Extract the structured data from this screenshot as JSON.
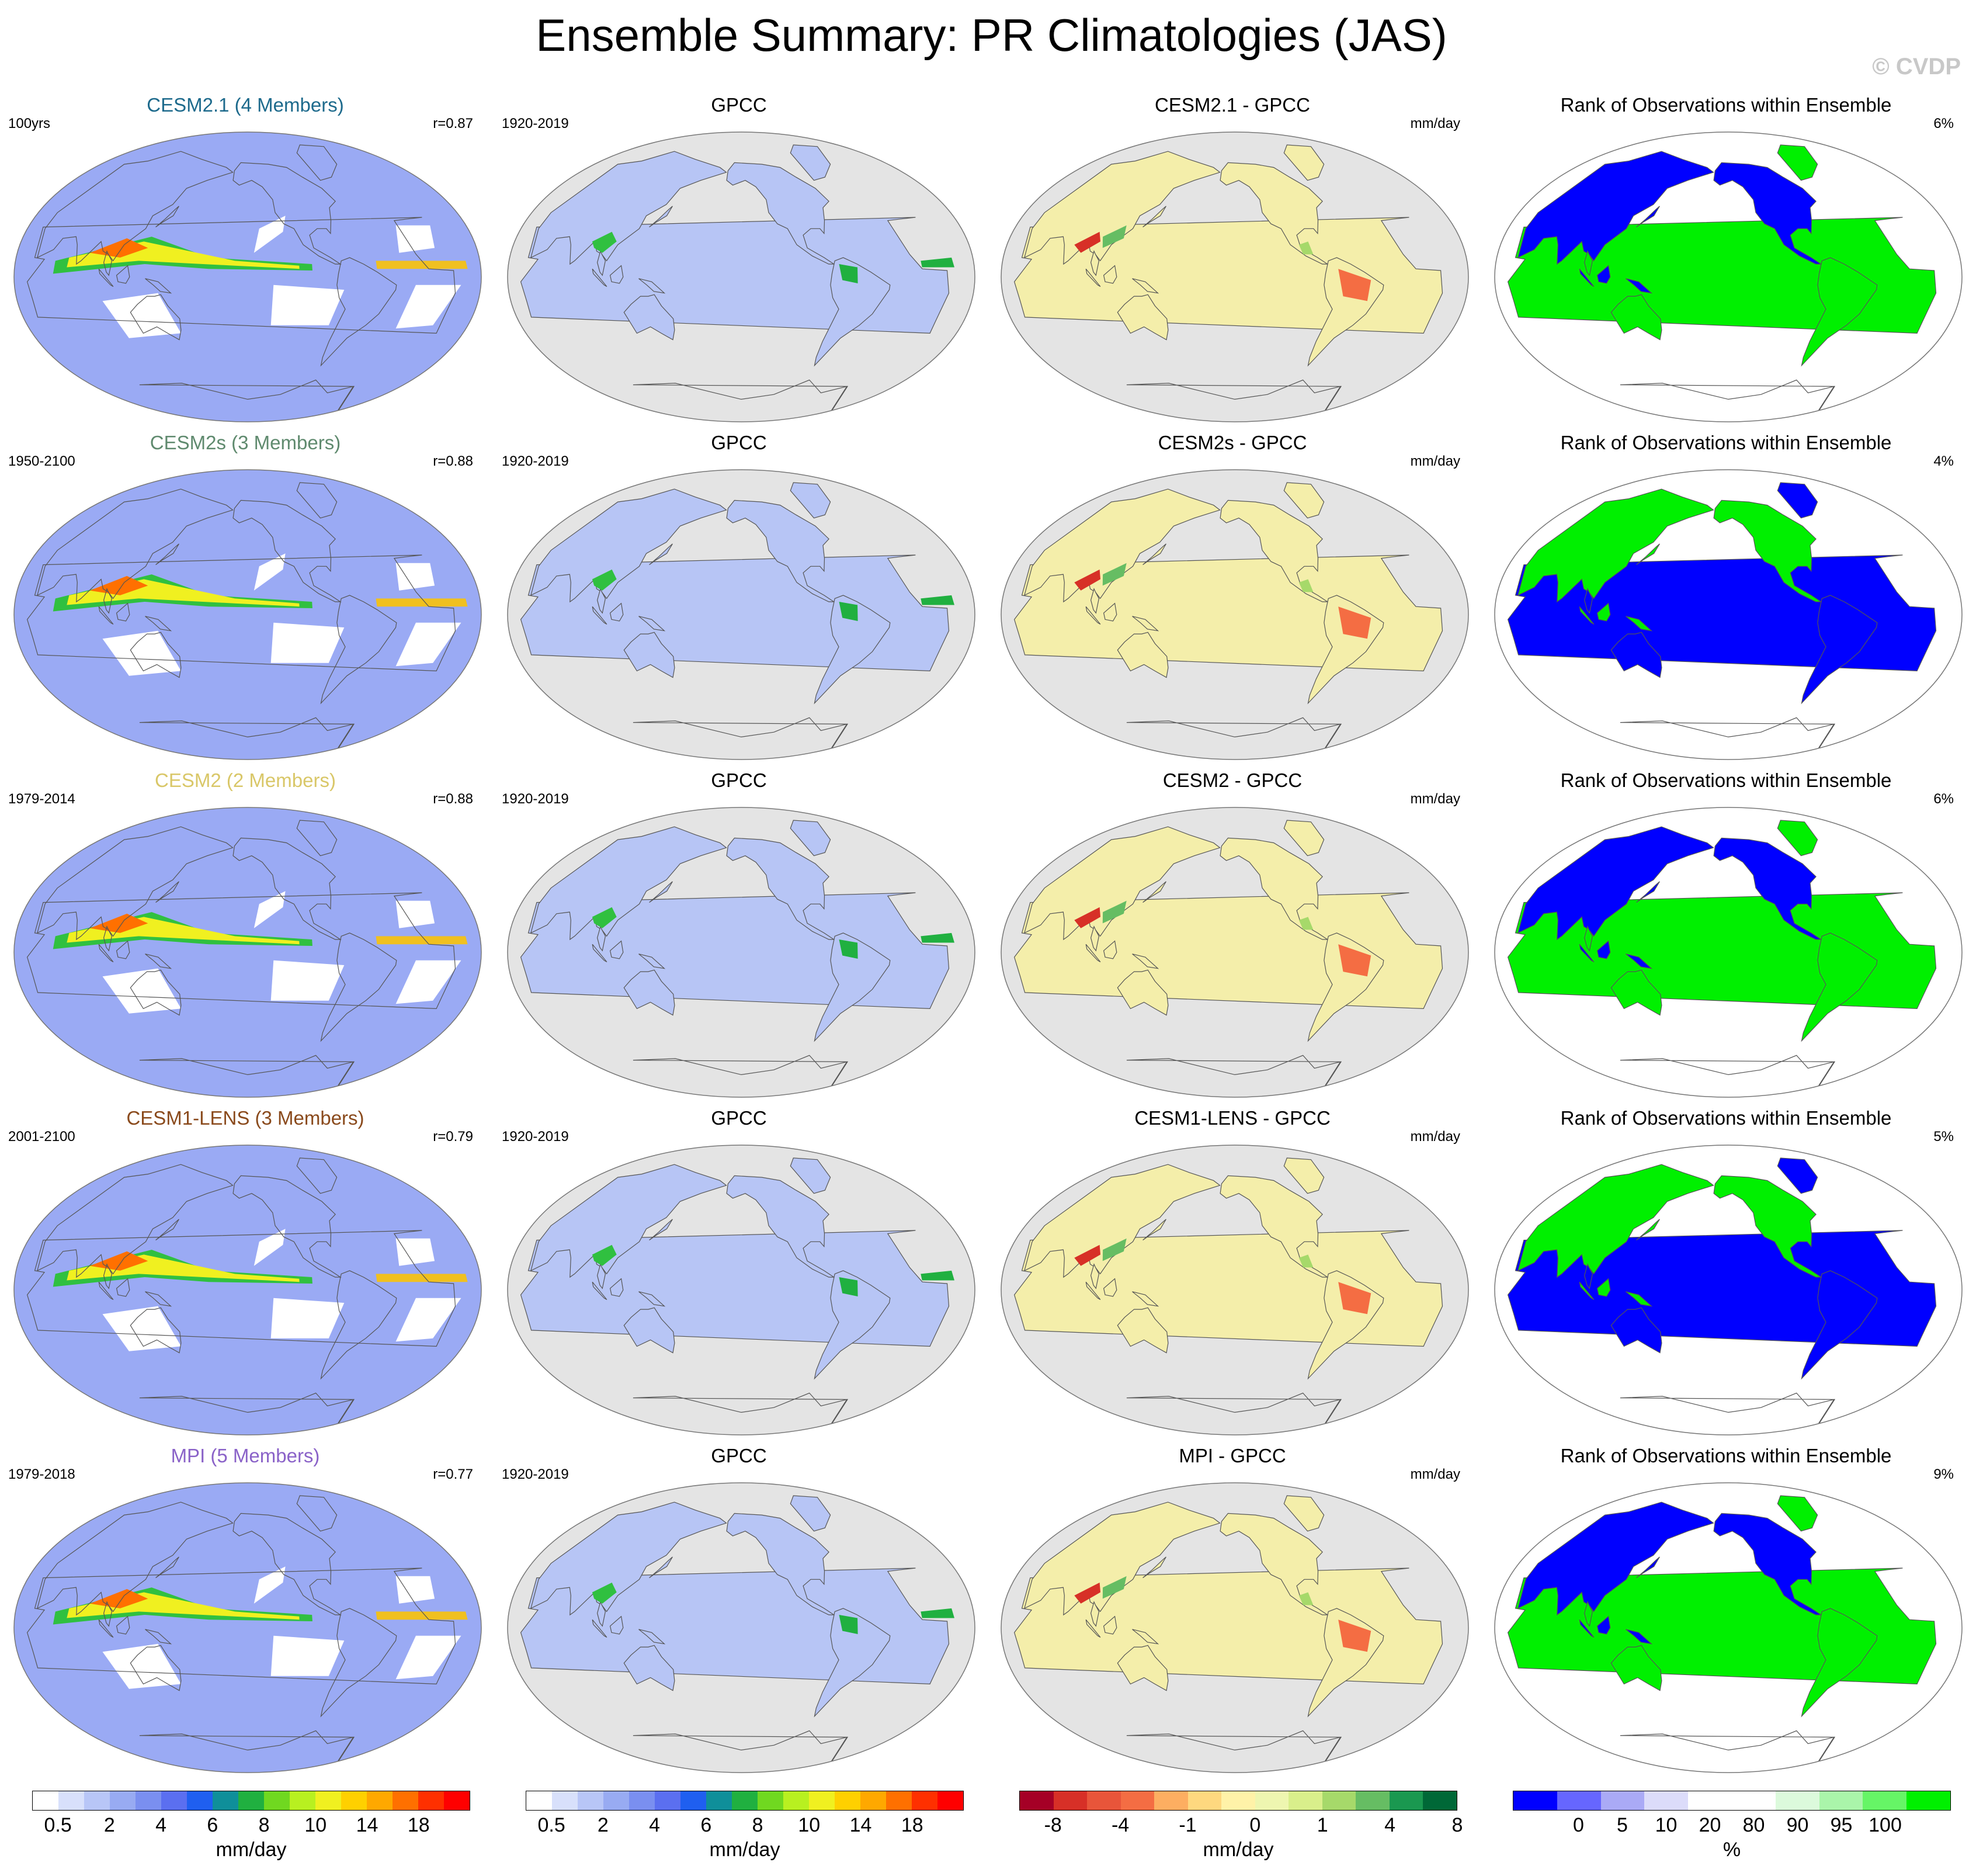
{
  "figure": {
    "title": "Ensemble Summary: PR Climatologies (JAS)",
    "watermark": "© CVDP"
  },
  "chart_data": {
    "type": "heatmap",
    "title": "Ensemble Summary: PR Climatologies (JAS)",
    "projection": "Robinson, Pacific-centered",
    "grid": "4 columns × 5 rows of global maps",
    "rows": [
      {
        "model": "CESM2.1",
        "members": "(4 Members)",
        "model_label": "CESM2.1 (4 Members)",
        "color": "#1d6a8c",
        "period": "100yrs",
        "r": "r=0.87",
        "obs": "GPCC",
        "obs_period": "1920-2019",
        "diff_title": "CESM2.1 - GPCC",
        "diff_unit": "mm/day",
        "rank_title": "Rank of Observations within Ensemble",
        "rank_pct": "6%"
      },
      {
        "model": "CESM2s",
        "members": "(3 Members)",
        "model_label": "CESM2s (3 Members)",
        "color": "#5f8a6e",
        "period": "1950-2100",
        "r": "r=0.88",
        "obs": "GPCC",
        "obs_period": "1920-2019",
        "diff_title": "CESM2s - GPCC",
        "diff_unit": "mm/day",
        "rank_title": "Rank of Observations within Ensemble",
        "rank_pct": "4%"
      },
      {
        "model": "CESM2",
        "members": "(2 Members)",
        "model_label": "CESM2 (2 Members)",
        "color": "#d9c768",
        "period": "1979-2014",
        "r": "r=0.88",
        "obs": "GPCC",
        "obs_period": "1920-2019",
        "diff_title": "CESM2 - GPCC",
        "diff_unit": "mm/day",
        "rank_title": "Rank of Observations within Ensemble",
        "rank_pct": "6%"
      },
      {
        "model": "CESM1-LENS",
        "members": "(3 Members)",
        "model_label": "CESM1-LENS (3 Members)",
        "color": "#8a4a1c",
        "period": "2001-2100",
        "r": "r=0.79",
        "obs": "GPCC",
        "obs_period": "1920-2019",
        "diff_title": "CESM1-LENS - GPCC",
        "diff_unit": "mm/day",
        "rank_title": "Rank of Observations within Ensemble",
        "rank_pct": "5%"
      },
      {
        "model": "MPI",
        "members": "(5 Members)",
        "model_label": "MPI (5 Members)",
        "color": "#8a62c8",
        "period": "1979-2018",
        "r": "r=0.77",
        "obs": "GPCC",
        "obs_period": "1920-2019",
        "diff_title": "MPI - GPCC",
        "diff_unit": "mm/day",
        "rank_title": "Rank of Observations within Ensemble",
        "rank_pct": "9%"
      }
    ],
    "colorbars": [
      {
        "unit": "mm/day",
        "ticks": [
          "0.5",
          "2",
          "4",
          "6",
          "8",
          "10",
          "14",
          "18"
        ],
        "tick_boundaries": [
          1,
          3,
          5,
          7,
          9,
          11,
          13,
          15
        ],
        "colors": [
          "#ffffff",
          "#d8e0fb",
          "#b8c6f7",
          "#98abf2",
          "#7a8ff0",
          "#5b6ff0",
          "#1f5ff0",
          "#0f8f9a",
          "#20b040",
          "#70d820",
          "#b8f020",
          "#f0f020",
          "#ffd000",
          "#ffa800",
          "#ff7000",
          "#ff3000",
          "#ff0000"
        ]
      },
      {
        "unit": "mm/day",
        "ticks": [
          "0.5",
          "2",
          "4",
          "6",
          "8",
          "10",
          "14",
          "18"
        ],
        "tick_boundaries": [
          1,
          3,
          5,
          7,
          9,
          11,
          13,
          15
        ],
        "colors": [
          "#ffffff",
          "#d8e0fb",
          "#b8c6f7",
          "#98abf2",
          "#7a8ff0",
          "#5b6ff0",
          "#1f5ff0",
          "#0f8f9a",
          "#20b040",
          "#70d820",
          "#b8f020",
          "#f0f020",
          "#ffd000",
          "#ffa800",
          "#ff7000",
          "#ff3000",
          "#ff0000"
        ]
      },
      {
        "unit": "mm/day",
        "ticks": [
          "-8",
          "-4",
          "-1",
          "0",
          "1",
          "4",
          "8"
        ],
        "tick_boundaries": [
          1,
          3,
          5,
          7,
          9,
          11,
          13
        ],
        "colors": [
          "#a50026",
          "#d73027",
          "#e8553a",
          "#f46d43",
          "#fdae61",
          "#fed87f",
          "#fff2a8",
          "#eef6b0",
          "#d9ef8b",
          "#a6d96a",
          "#66bd63",
          "#1a9850",
          "#006837"
        ]
      },
      {
        "unit": "%",
        "ticks": [
          "0",
          "5",
          "10",
          "20",
          "80",
          "90",
          "95",
          "100"
        ],
        "tick_positions": [
          1,
          2,
          3,
          4,
          5,
          6,
          7,
          8
        ],
        "colors": [
          "#0000ff",
          "#6666ff",
          "#aaaaf6",
          "#dcdcfa",
          "#ffffff",
          "#ffffff",
          "#dcfadc",
          "#aaf5aa",
          "#66f566",
          "#00f000"
        ]
      }
    ]
  }
}
